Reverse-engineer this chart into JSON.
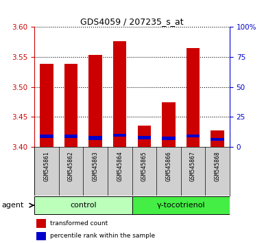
{
  "title": "GDS4059 / 207235_s_at",
  "samples": [
    "GSM545861",
    "GSM545862",
    "GSM545863",
    "GSM545864",
    "GSM545865",
    "GSM545866",
    "GSM545867",
    "GSM545868"
  ],
  "red_values": [
    3.538,
    3.538,
    3.553,
    3.576,
    3.436,
    3.474,
    3.565,
    3.428
  ],
  "blue_bottom": [
    3.415,
    3.415,
    3.412,
    3.417,
    3.413,
    3.412,
    3.416,
    3.41
  ],
  "blue_top": [
    3.421,
    3.421,
    3.418,
    3.422,
    3.418,
    3.417,
    3.421,
    3.415
  ],
  "ylim_left": [
    3.4,
    3.6
  ],
  "ylim_right": [
    0,
    100
  ],
  "yticks_left": [
    3.4,
    3.45,
    3.5,
    3.55,
    3.6
  ],
  "yticks_right": [
    0,
    25,
    50,
    75,
    100
  ],
  "ytick_labels_right": [
    "0",
    "25",
    "50",
    "75",
    "100%"
  ],
  "bar_width": 0.55,
  "red_color": "#cc0000",
  "blue_color": "#0000cc",
  "group_colors": [
    "#bbffbb",
    "#44ee44"
  ],
  "group_labels": [
    "control",
    "γ-tocotrienol"
  ],
  "legend_red": "transformed count",
  "legend_blue": "percentile rank within the sample",
  "agent_label": "agent",
  "label_color_left": "#cc0000",
  "label_color_right": "#0000cc",
  "sample_bg": "#d0d0d0",
  "title_fontsize": 9,
  "tick_fontsize": 7.5,
  "sample_fontsize": 5.8,
  "group_fontsize": 8,
  "legend_fontsize": 6.5
}
